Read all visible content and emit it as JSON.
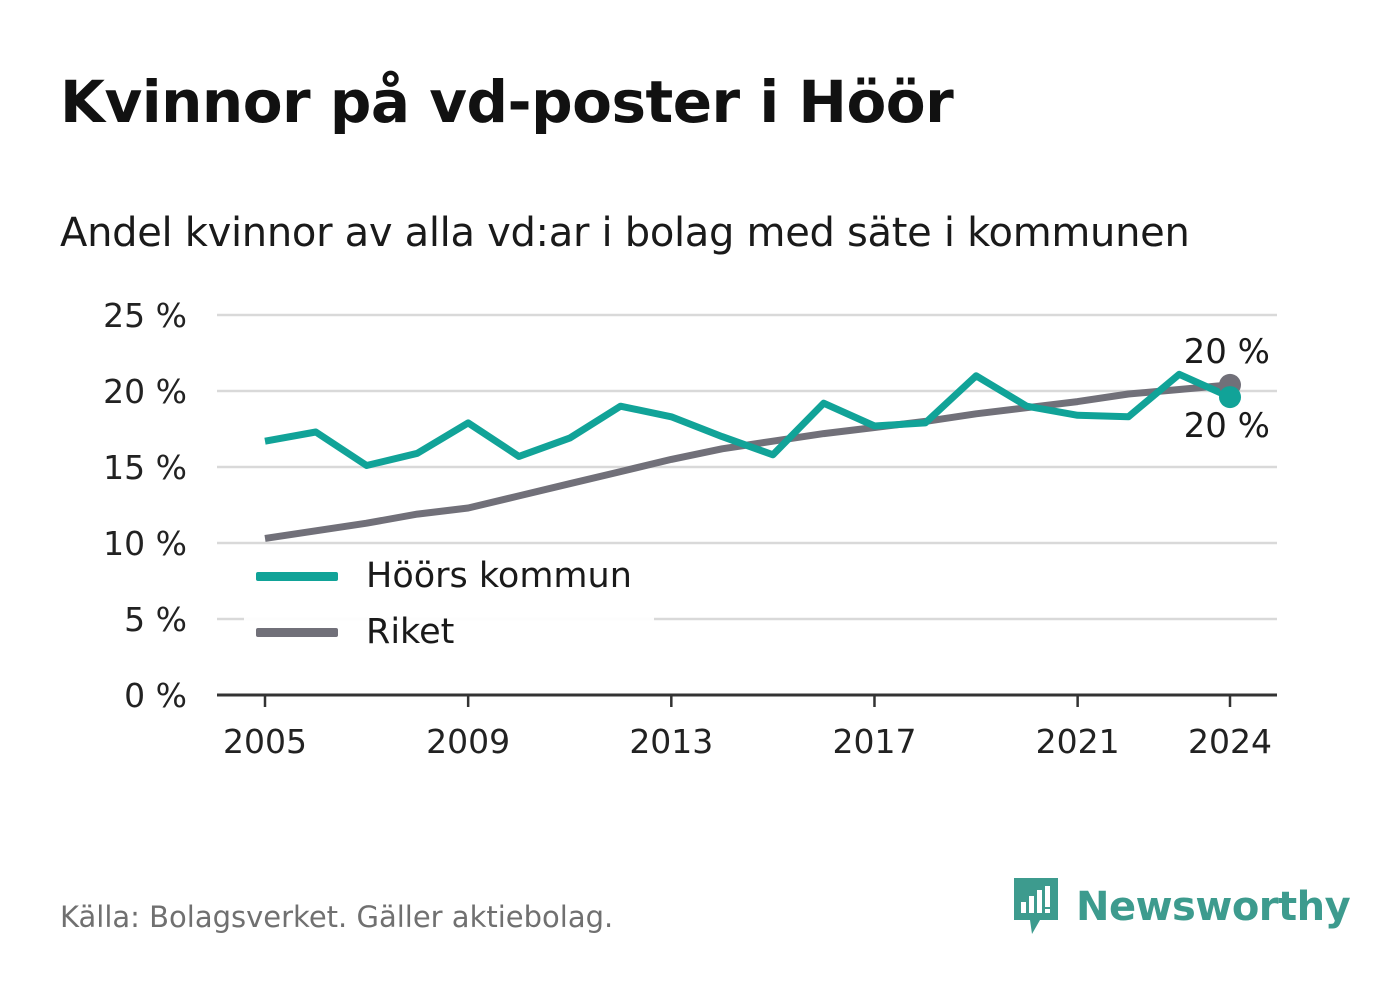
{
  "title": "Kvinnor på vd-poster i Höör",
  "subtitle": "Andel kvinnor av alla vd:ar i bolag med säte i kommunen",
  "source": "Källa: Bolagsverket. Gäller aktiebolag.",
  "brand": {
    "name": "Newsworthy",
    "icon": "newsworthy-logo-icon",
    "color": "#3d9b8e"
  },
  "colors": {
    "hoor": "#11a398",
    "riket": "#717079",
    "grid": "#d9d9d9",
    "axis": "#333333"
  },
  "chart_data": {
    "type": "line",
    "x": [
      2005,
      2006,
      2007,
      2008,
      2009,
      2010,
      2011,
      2012,
      2013,
      2014,
      2015,
      2016,
      2017,
      2018,
      2019,
      2020,
      2021,
      2022,
      2023,
      2024
    ],
    "x_ticks": [
      2005,
      2009,
      2013,
      2017,
      2021,
      2024
    ],
    "x_tick_labels": [
      "2005",
      "2009",
      "2013",
      "2017",
      "2021",
      "2024"
    ],
    "y_ticks": [
      0,
      5,
      10,
      15,
      20,
      25
    ],
    "y_tick_labels": [
      "0 %",
      "5 %",
      "10 %",
      "15 %",
      "20 %",
      "25 %"
    ],
    "ylim": [
      0,
      25
    ],
    "grid": true,
    "legend_position": "bottom-left",
    "series": [
      {
        "name": "Höörs kommun",
        "color": "#11a398",
        "values": [
          16.7,
          17.3,
          15.1,
          15.9,
          17.9,
          15.7,
          16.9,
          19.0,
          18.3,
          17.0,
          15.8,
          19.2,
          17.7,
          17.9,
          21.0,
          19.0,
          18.4,
          18.3,
          21.1,
          19.6
        ],
        "end_label": "20 %"
      },
      {
        "name": "Riket",
        "color": "#717079",
        "values": [
          10.3,
          10.8,
          11.3,
          11.9,
          12.3,
          13.1,
          13.9,
          14.7,
          15.5,
          16.2,
          16.7,
          17.2,
          17.6,
          18.0,
          18.5,
          18.9,
          19.3,
          19.8,
          20.1,
          20.4
        ],
        "end_label": "20 %"
      }
    ]
  }
}
